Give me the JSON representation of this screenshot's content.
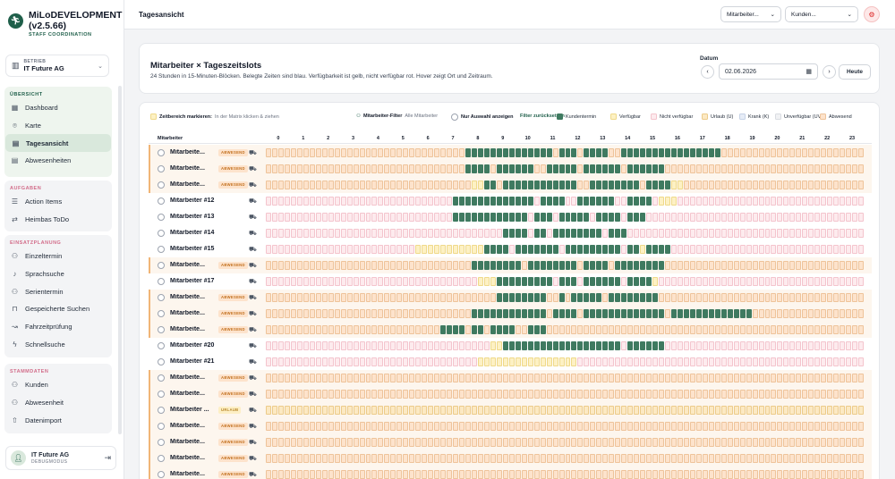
{
  "sidebar": {
    "brand_title": "MiLoDEVELOPMENT (v2.5.66)",
    "brand_subtitle": "STAFF COORDINATION",
    "betrieb_label": "BETRIEB",
    "betrieb_value": "IT Future AG",
    "groups": [
      {
        "title": "ÜBERSICHT",
        "items": [
          {
            "label": "Dashboard",
            "icon": "grid-icon",
            "glyph": "▦",
            "active": false
          },
          {
            "label": "Karte",
            "icon": "map-pin-icon",
            "glyph": "⌾",
            "active": false
          },
          {
            "label": "Tagesansicht",
            "icon": "calendar-icon",
            "glyph": "▤",
            "active": true
          },
          {
            "label": "Abwesenheiten",
            "icon": "calendar-off-icon",
            "glyph": "▤",
            "active": false
          }
        ]
      },
      {
        "title": "AUFGABEN",
        "items": [
          {
            "label": "Action Items",
            "icon": "list-check-icon",
            "glyph": "☰",
            "active": false
          },
          {
            "label": "Heimbas ToDo",
            "icon": "shuffle-icon",
            "glyph": "⇄",
            "active": false
          }
        ]
      },
      {
        "title": "EINSATZPLANUNG",
        "items": [
          {
            "label": "Einzeltermin",
            "icon": "users-icon",
            "glyph": "⚇",
            "active": false
          },
          {
            "label": "Sprachsuche",
            "icon": "microphone-icon",
            "glyph": "♪",
            "active": false
          },
          {
            "label": "Serientermin",
            "icon": "users-icon",
            "glyph": "⚇",
            "active": false
          },
          {
            "label": "Gespeicherte Suchen",
            "icon": "bookmark-icon",
            "glyph": "⊓",
            "active": false
          },
          {
            "label": "Fahrzeitprüfung",
            "icon": "route-icon",
            "glyph": "↝",
            "active": false
          },
          {
            "label": "Schnellsuche",
            "icon": "bolt-icon",
            "glyph": "ϟ",
            "active": false
          }
        ]
      },
      {
        "title": "STAMMDATEN",
        "items": [
          {
            "label": "Kunden",
            "icon": "users-icon",
            "glyph": "⚇",
            "active": false
          },
          {
            "label": "Abwesenheit",
            "icon": "users-icon",
            "glyph": "⚇",
            "active": false
          },
          {
            "label": "Datenimport",
            "icon": "upload-icon",
            "glyph": "⇧",
            "active": false
          }
        ]
      }
    ],
    "user_name": "IT Future AG",
    "user_sub": "DEBUGMODUS"
  },
  "topbar": {
    "title": "Tagesansicht",
    "select_employee": "Mitarbeiter...",
    "select_customer": "Kunden..."
  },
  "header_card": {
    "title": "Mitarbeiter × Tageszeitslots",
    "subtitle": "24 Stunden in 15-Minuten-Blöcken. Belegte Zeiten sind blau. Verfügbarkeit ist gelb, nicht verfügbar rot. Hover zeigt Ort und Zeitraum.",
    "date_label": "Datum",
    "date_value": "02.06.2026",
    "today_label": "Heute"
  },
  "toolbar": {
    "mark_label": "Zeitbereich markieren:",
    "mark_hint": "In der Matrix klicken & ziehen",
    "filter_label": "Mitarbeiter-Filter",
    "filter_value": "Alle Mitarbeiter",
    "only_selection": "Nur Auswahl anzeigen",
    "reset": "Filter zurücksetzen"
  },
  "legend": [
    {
      "label": "Kundentermin",
      "color": "#3f7a60",
      "border": "#3f7a60"
    },
    {
      "label": "Verfügbar",
      "color": "#fdf1c4",
      "border": "#efd98a"
    },
    {
      "label": "Nicht verfügbar",
      "color": "#fdebee",
      "border": "#f4c4cd"
    },
    {
      "label": "Urlaub (U)",
      "color": "#fce9c3",
      "border": "#eccb8a"
    },
    {
      "label": "Krank (K)",
      "color": "#e7edf7",
      "border": "#c6d2e6"
    },
    {
      "label": "Unverfügbar (UV)",
      "color": "#f1f2f4",
      "border": "#d9dce1"
    },
    {
      "label": "Abwesend",
      "color": "#fde3cc",
      "border": "#eec39a"
    }
  ],
  "grid": {
    "header_label": "Mitarbeiter",
    "hours": [
      "0",
      "1",
      "2",
      "3",
      "4",
      "5",
      "6",
      "7",
      "8",
      "9",
      "10",
      "11",
      "12",
      "13",
      "14",
      "15",
      "16",
      "17",
      "18",
      "19",
      "20",
      "21",
      "22",
      "23"
    ],
    "rows": [
      {
        "name": "Mitarbeite...",
        "badge": "ABWESEND",
        "bg": "abwesend",
        "busy": [
          [
            32,
            46
          ],
          [
            47,
            50
          ],
          [
            51,
            55
          ],
          [
            57,
            73
          ]
        ],
        "avail": []
      },
      {
        "name": "Mitarbeite...",
        "badge": "ABWESEND",
        "bg": "abwesend",
        "busy": [
          [
            32,
            36
          ],
          [
            37,
            43
          ],
          [
            45,
            50
          ],
          [
            51,
            57
          ],
          [
            58,
            64
          ]
        ],
        "avail": []
      },
      {
        "name": "Mitarbeite...",
        "badge": "ABWESEND",
        "bg": "abwesend",
        "busy": [
          [
            35,
            37
          ],
          [
            38,
            50
          ],
          [
            52,
            60
          ],
          [
            61,
            65
          ]
        ],
        "avail": [
          [
            33,
            35
          ],
          [
            65,
            67
          ]
        ]
      },
      {
        "name": "Mitarbeiter #12",
        "badge": "",
        "bg": "nicht",
        "busy": [
          [
            30,
            43
          ],
          [
            44,
            48
          ],
          [
            50,
            56
          ],
          [
            58,
            62
          ]
        ],
        "avail": [
          [
            63,
            66
          ]
        ]
      },
      {
        "name": "Mitarbeiter #13",
        "badge": "",
        "bg": "nicht",
        "busy": [
          [
            30,
            42
          ],
          [
            43,
            46
          ],
          [
            47,
            52
          ],
          [
            53,
            57
          ],
          [
            58,
            61
          ]
        ],
        "avail": []
      },
      {
        "name": "Mitarbeiter #14",
        "badge": "",
        "bg": "nicht",
        "busy": [
          [
            38,
            42
          ],
          [
            43,
            45
          ],
          [
            46,
            54
          ],
          [
            55,
            58
          ]
        ],
        "avail": []
      },
      {
        "name": "Mitarbeiter #15",
        "badge": "",
        "bg": "nicht",
        "busy": [
          [
            35,
            39
          ],
          [
            40,
            47
          ],
          [
            48,
            57
          ],
          [
            58,
            60
          ],
          [
            61,
            65
          ]
        ],
        "avail": [
          [
            24,
            35
          ],
          [
            59,
            61
          ]
        ]
      },
      {
        "name": "Mitarbeite...",
        "badge": "ABWESEND",
        "bg": "abwesend",
        "busy": [
          [
            33,
            41
          ],
          [
            42,
            50
          ],
          [
            51,
            55
          ],
          [
            56,
            64
          ]
        ],
        "avail": []
      },
      {
        "name": "Mitarbeiter #17",
        "badge": "",
        "bg": "nicht",
        "busy": [
          [
            37,
            46
          ],
          [
            47,
            50
          ],
          [
            51,
            57
          ],
          [
            58,
            62
          ]
        ],
        "avail": [
          [
            34,
            37
          ],
          [
            62,
            63
          ]
        ]
      },
      {
        "name": "Mitarbeite...",
        "badge": "ABWESEND",
        "bg": "abwesend",
        "busy": [
          [
            37,
            45
          ],
          [
            47,
            48
          ],
          [
            49,
            54
          ],
          [
            55,
            63
          ]
        ],
        "avail": []
      },
      {
        "name": "Mitarbeite...",
        "badge": "ABWESEND",
        "bg": "abwesend",
        "busy": [
          [
            33,
            45
          ],
          [
            46,
            50
          ],
          [
            51,
            64
          ],
          [
            65,
            78
          ]
        ],
        "avail": []
      },
      {
        "name": "Mitarbeite...",
        "badge": "ABWESEND",
        "bg": "abwesend",
        "busy": [
          [
            28,
            32
          ],
          [
            33,
            35
          ],
          [
            36,
            40
          ],
          [
            42,
            45
          ]
        ],
        "avail": []
      },
      {
        "name": "Mitarbeiter #20",
        "badge": "",
        "bg": "nicht",
        "busy": [
          [
            38,
            57
          ],
          [
            58,
            64
          ]
        ],
        "avail": [
          [
            36,
            38
          ]
        ]
      },
      {
        "name": "Mitarbeiter #21",
        "badge": "",
        "bg": "nicht",
        "busy": [],
        "avail": [
          [
            34,
            50
          ]
        ]
      },
      {
        "name": "Mitarbeite...",
        "badge": "ABWESEND",
        "bg": "abwesend",
        "busy": [],
        "avail": []
      },
      {
        "name": "Mitarbeite...",
        "badge": "ABWESEND",
        "bg": "abwesend",
        "busy": [],
        "avail": []
      },
      {
        "name": "Mitarbeiter ...",
        "badge": "URLAUB",
        "bg": "urlaub",
        "busy": [],
        "avail": []
      },
      {
        "name": "Mitarbeite...",
        "badge": "ABWESEND",
        "bg": "abwesend",
        "busy": [],
        "avail": []
      },
      {
        "name": "Mitarbeite...",
        "badge": "ABWESEND",
        "bg": "abwesend",
        "busy": [],
        "avail": []
      },
      {
        "name": "Mitarbeite...",
        "badge": "ABWESEND",
        "bg": "abwesend",
        "busy": [],
        "avail": []
      },
      {
        "name": "Mitarbeite...",
        "badge": "ABWESEND",
        "bg": "abwesend",
        "busy": [],
        "avail": []
      }
    ]
  }
}
